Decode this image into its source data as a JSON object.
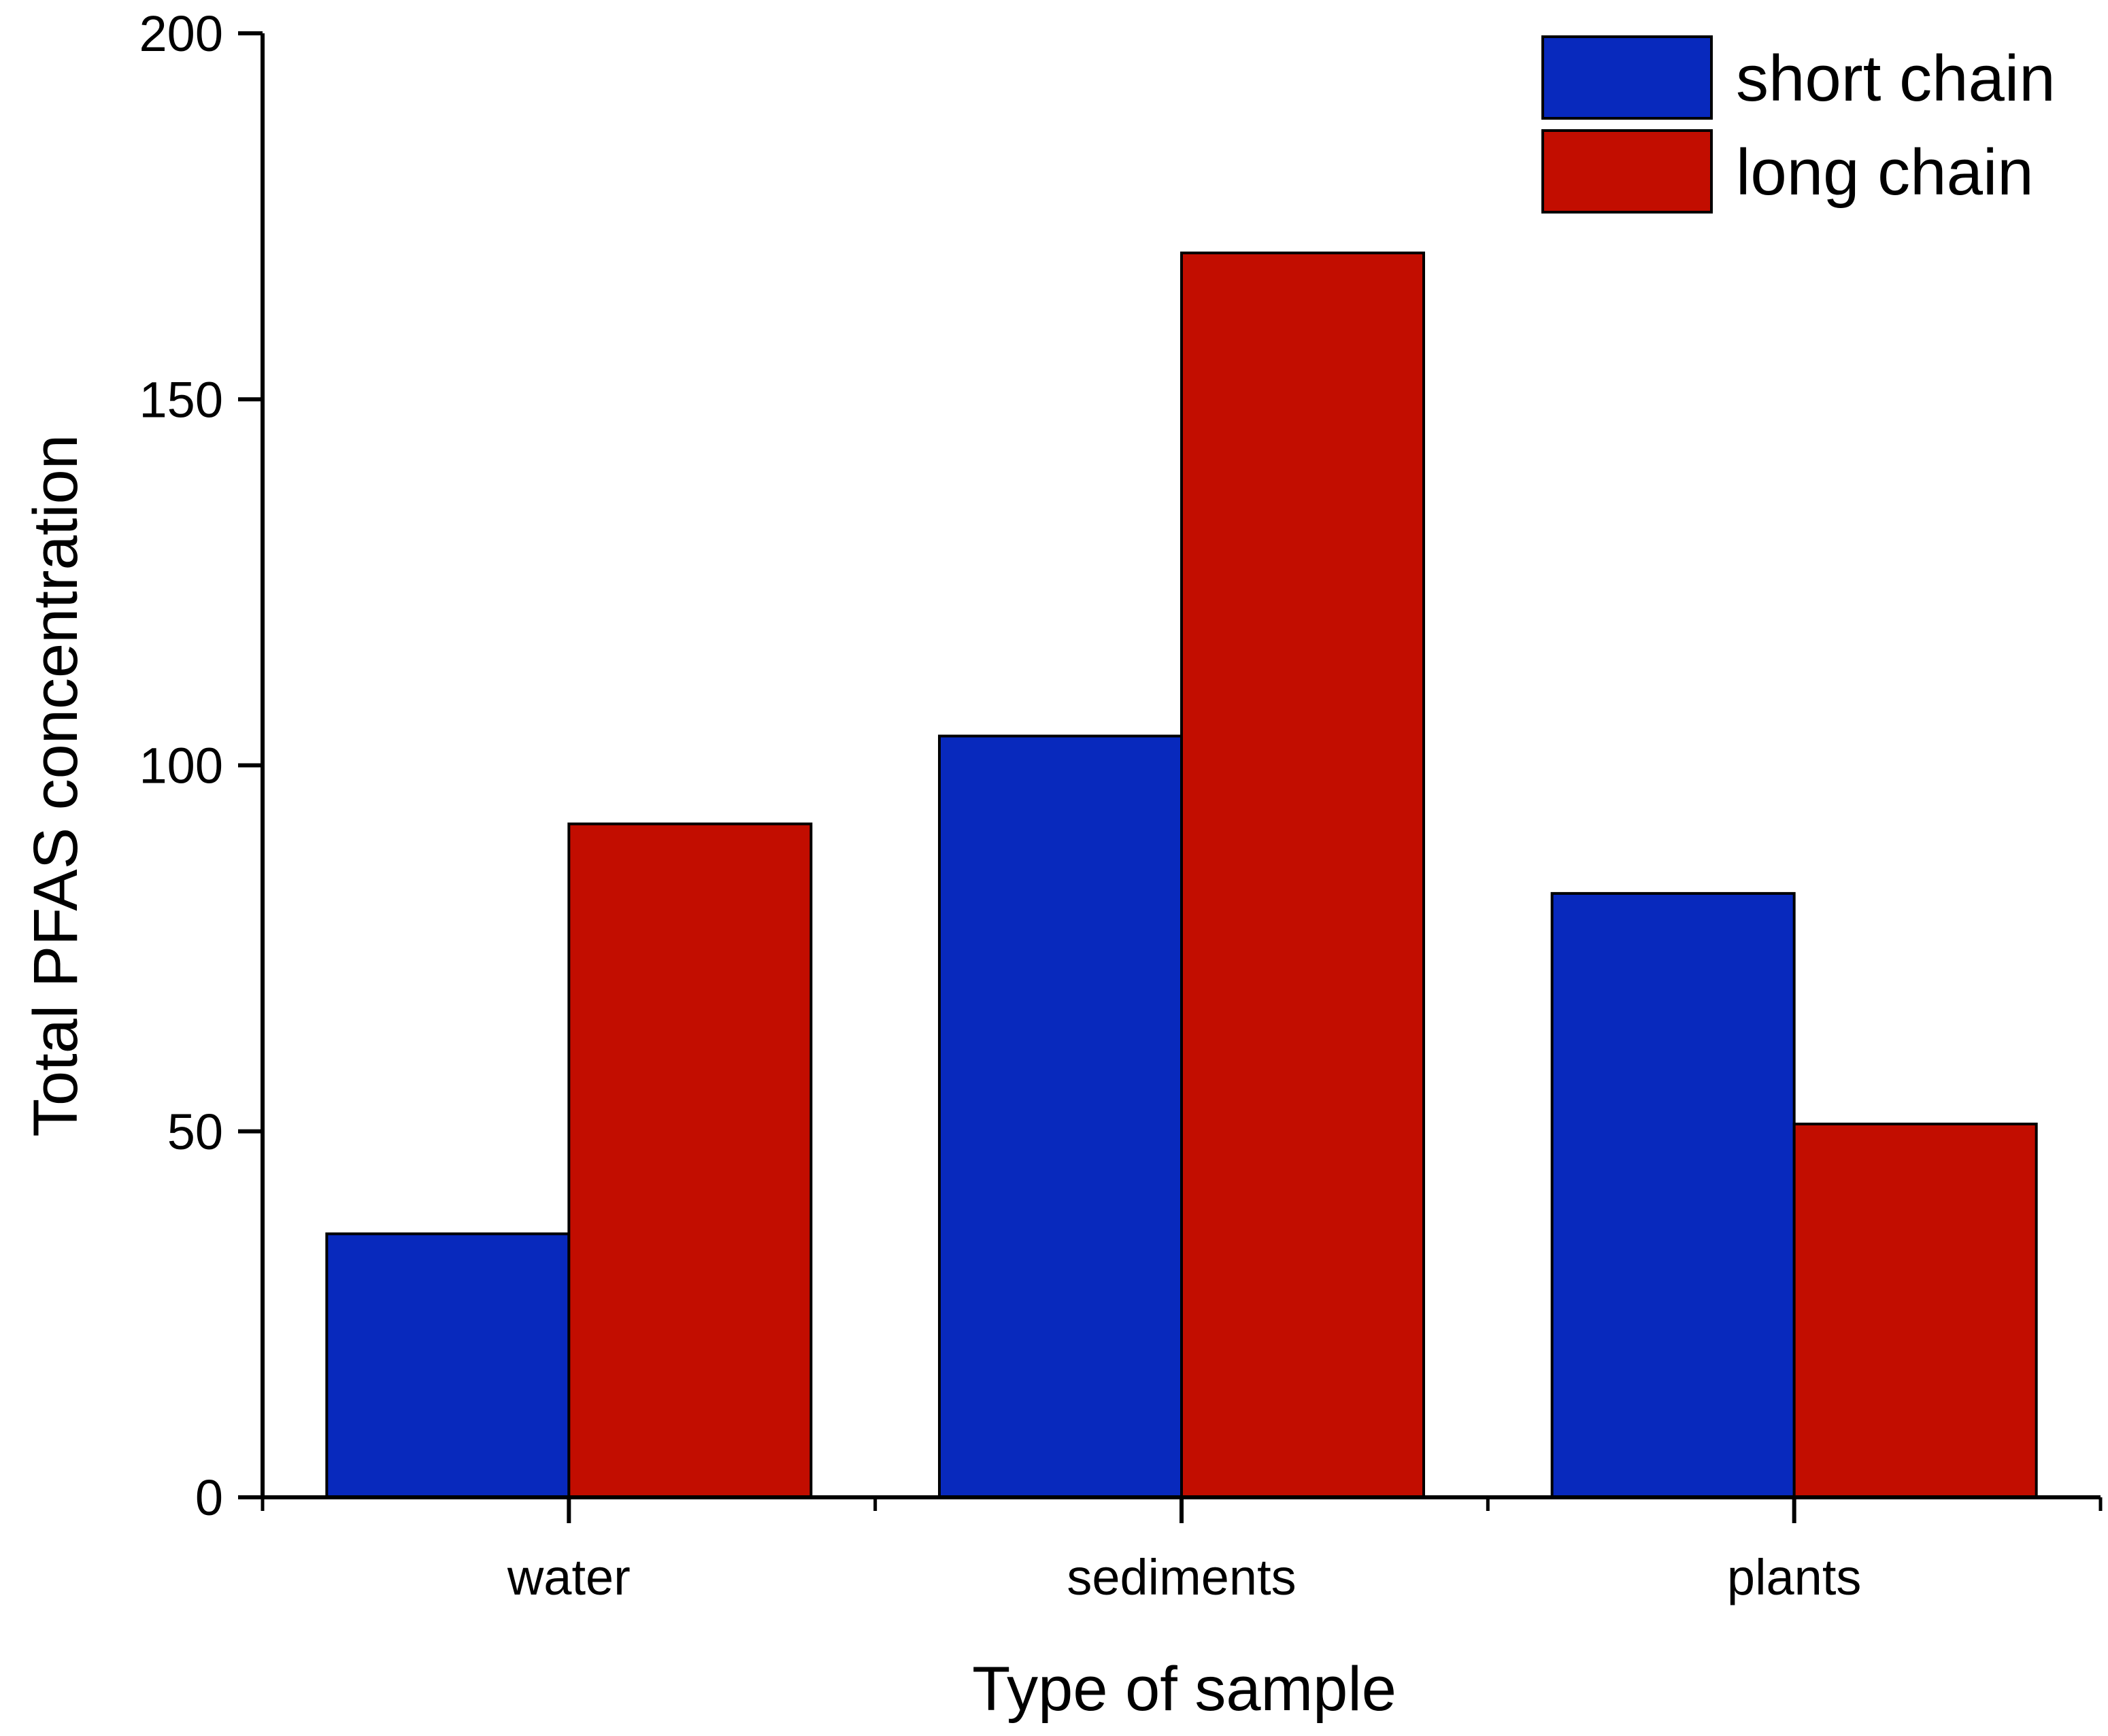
{
  "chart_data": {
    "type": "bar",
    "title": "",
    "xlabel": "Type of sample",
    "ylabel": "Total PFAS concentration",
    "categories": [
      "water",
      "sediments",
      "plants"
    ],
    "series": [
      {
        "name": "short chain",
        "color": "#0829BD",
        "values": [
          36,
          104,
          82.5
        ]
      },
      {
        "name": "long chain",
        "color": "#C20D00",
        "values": [
          92,
          170,
          51
        ]
      }
    ],
    "ylim": [
      0,
      200
    ],
    "yticks": [
      0,
      50,
      100,
      150,
      200
    ],
    "grid": false,
    "legend_position": "top-right"
  }
}
